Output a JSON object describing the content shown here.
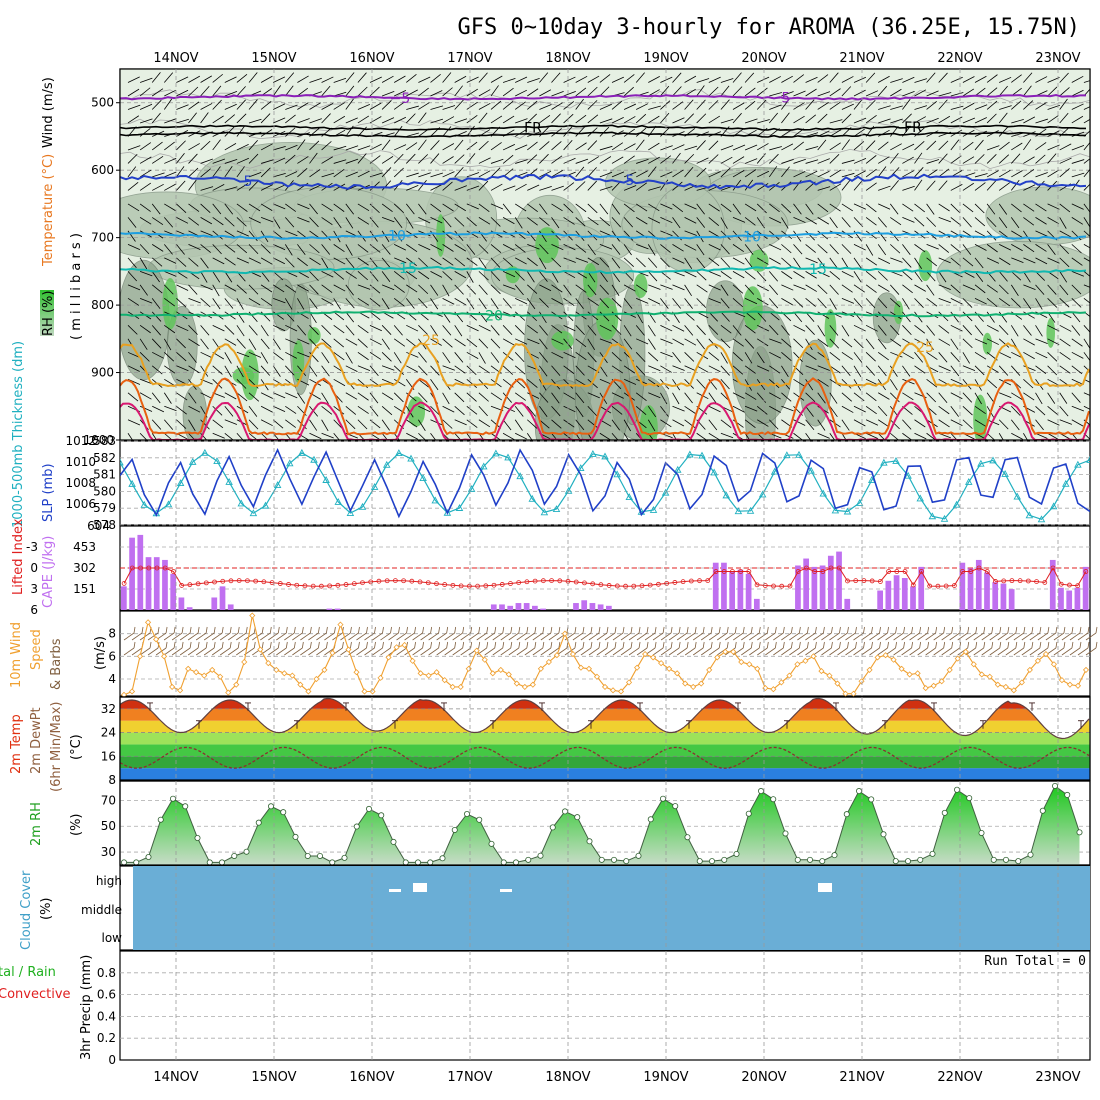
{
  "title": "GFS 0~10day 3-hourly for AROMA (36.25E, 15.75N)",
  "dates": [
    "14NOV",
    "15NOV",
    "16NOV",
    "17NOV",
    "18NOV",
    "19NOV",
    "20NOV",
    "21NOV",
    "22NOV",
    "23NOV"
  ],
  "panel_labels": {
    "upper_wind": "Wind (m/s)",
    "upper_temp": "Temperature (°C)",
    "upper_rh": "RH (%)",
    "upper_pressure": "( m i l l i b a r s )",
    "thickness": "1000-500mb Thickness (dm)",
    "slp": "SLP (mb)",
    "lifted": "Lifted Index",
    "cape": "CAPE (J/kg)",
    "wind10_a": "10m Wind",
    "wind10_b": "Speed",
    "wind10_c": "& Barbs",
    "wind10_unit": "(m/s)",
    "temp_a": "2m Temp",
    "temp_b": "2m DewPt",
    "temp_c": "(6hr Min/Max)",
    "temp_unit": "(°C)",
    "rh2m": "2m RH",
    "rh2m_unit": "(%)",
    "cloud": "Cloud Cover",
    "cloud_unit": "(%)",
    "precip_a": "tal / Rain",
    "precip_b": "Convective",
    "precip_c": "3hr Precip (mm)"
  },
  "run_total": "Run Total = 0",
  "colors": {
    "grid": "#aaaaaa",
    "rh_light": "#e6f0e3",
    "rh_mid": "#b3c6b0",
    "rh_dark": "#8aa088",
    "rh_green": "#5fc45a",
    "temp_m5": "#8a20b8",
    "temp_fr": "#000000",
    "temp_5": "#2340c8",
    "temp_10": "#1e9ee0",
    "temp_15": "#10b8b0",
    "temp_20": "#10b070",
    "temp_25": "#e8a020",
    "temp_30": "#e86010",
    "temp_35": "#d81870",
    "thickness": "#20b0c0",
    "slp": "#2040c8",
    "cape": "#c070f0",
    "lifted": "#e02020",
    "wind10": "#f0a030",
    "barb": "#806040",
    "rh2m": "#20c020",
    "cloud": "#6aaed6"
  },
  "chart_data": [
    {
      "id": "upper_air",
      "type": "contour",
      "ylabel": "millibars",
      "ylim": [
        1000,
        450
      ],
      "ytick_labels": [
        "500",
        "600",
        "700",
        "800",
        "900",
        "1000"
      ],
      "isotherms": [
        {
          "label": "-5",
          "mean_hPa": 492,
          "amp": 6
        },
        {
          "label": "FR",
          "mean_hPa": 537,
          "amp": 6
        },
        {
          "label": "5",
          "mean_hPa": 617,
          "amp": 18
        },
        {
          "label": "10",
          "mean_hPa": 697,
          "amp": 8
        },
        {
          "label": "15",
          "mean_hPa": 748,
          "amp": 8
        },
        {
          "label": "20",
          "mean_hPa": 813,
          "amp": 6
        },
        {
          "label": "25",
          "mean_hPa": 888,
          "amp": 60
        },
        {
          "label": "30",
          "mean_hPa": 952,
          "amp": 55
        },
        {
          "label": "35",
          "mean_hPa": 985,
          "amp": 30
        }
      ],
      "rh_levels_pct": [
        10,
        30,
        50,
        70
      ]
    },
    {
      "id": "thickness_slp",
      "type": "line",
      "series": [
        {
          "name": "1000-500mb Thickness (dm)",
          "axis": "left",
          "ylim": [
            578,
            583
          ],
          "ytick_labels": [
            "578",
            "579",
            "580",
            "581",
            "582",
            "583"
          ]
        },
        {
          "name": "SLP (mb)",
          "axis": "right",
          "ylim": [
            1004,
            1012
          ],
          "ytick_labels": [
            "1006",
            "1008",
            "1010",
            "1012"
          ]
        }
      ]
    },
    {
      "id": "cape_lifted",
      "type": "bar",
      "series": [
        {
          "name": "CAPE (J/kg)",
          "ylim": [
            0,
            604
          ],
          "ytick_labels": [
            "604",
            "453",
            "302",
            "151"
          ],
          "values": [
            170,
            520,
            540,
            380,
            380,
            360,
            260,
            90,
            20,
            0,
            0,
            90,
            170,
            40,
            0,
            0,
            0,
            0,
            0,
            0,
            0,
            0,
            0,
            0,
            0,
            10,
            10,
            0,
            0,
            0,
            0,
            0,
            0,
            0,
            0,
            0,
            0,
            0,
            0,
            0,
            0,
            0,
            0,
            0,
            0,
            40,
            40,
            30,
            50,
            50,
            30,
            10,
            0,
            0,
            0,
            50,
            70,
            50,
            40,
            30,
            0,
            0,
            0,
            0,
            0,
            0,
            0,
            0,
            0,
            0,
            0,
            0,
            340,
            340,
            280,
            290,
            260,
            80,
            0,
            0,
            0,
            0,
            320,
            370,
            310,
            320,
            390,
            420,
            80,
            0,
            0,
            0,
            140,
            210,
            250,
            230,
            170,
            310,
            0,
            0,
            0,
            0,
            340,
            300,
            360,
            270,
            200,
            190,
            150,
            0,
            0,
            0,
            0,
            360,
            160,
            140,
            160,
            310
          ]
        },
        {
          "name": "Lifted Index",
          "ylim": [
            6,
            -6
          ],
          "ytick_labels": [
            "-3",
            "0",
            "3",
            "6"
          ]
        }
      ]
    },
    {
      "id": "wind10",
      "type": "line",
      "ylabel": "m/s",
      "ylim": [
        2.5,
        10
      ],
      "ytick_labels": [
        "4",
        "6",
        "8"
      ],
      "values": [
        2.6,
        2.9,
        6.0,
        9.0,
        7.5,
        6.0,
        3.3,
        3.0,
        4.9,
        4.6,
        4.3,
        4.8,
        4.2,
        2.8,
        3.5,
        5.5,
        9.6,
        6.6,
        5.4,
        4.8,
        4.5,
        4.3,
        3.5,
        2.9,
        4.0,
        4.8,
        6.3,
        8.8,
        6.6,
        4.6,
        2.9,
        2.9,
        4.1,
        5.9,
        6.8,
        7.0,
        5.6,
        4.5,
        4.3,
        4.6,
        3.9,
        3.3,
        3.3,
        4.9,
        6.5,
        5.7,
        4.5,
        4.8,
        4.4,
        3.6,
        3.3,
        3.5,
        4.9,
        5.5,
        6.1,
        8.0,
        6.2,
        5.0,
        4.9,
        4.2,
        3.3,
        3.0,
        2.9,
        3.7,
        5.0,
        6.2,
        5.9,
        5.4,
        4.9,
        4.5,
        3.6,
        3.3,
        3.6,
        4.8,
        5.9,
        6.4,
        6.4,
        5.5,
        5.3,
        4.9,
        3.2,
        3.1,
        3.7,
        4.3,
        5.3,
        5.6,
        6.0,
        4.7,
        4.3,
        3.6,
        2.7,
        2.7,
        3.8,
        4.8,
        5.9,
        6.1,
        5.7,
        4.9,
        4.4,
        4.5,
        3.2,
        3.4,
        3.8,
        4.8,
        5.8,
        6.4,
        5.3,
        4.4,
        4.2,
        3.5,
        3.3,
        3.0,
        3.7,
        4.8,
        5.6,
        6.2,
        5.3,
        3.9,
        3.5,
        3.4,
        4.8
      ]
    },
    {
      "id": "temp2m",
      "type": "area",
      "ylabel": "°C",
      "ylim": [
        8,
        36
      ],
      "ytick_labels": [
        "32",
        "24",
        "16",
        "8"
      ],
      "tmax_C": [
        35,
        35,
        35.5,
        35,
        35,
        35,
        35,
        35.5,
        35,
        34
      ],
      "tmin_C": [
        24,
        24,
        24.5,
        24,
        24,
        24,
        24,
        23.5,
        23,
        22
      ],
      "dewpt_max_C": 19,
      "dewpt_min_C": 12
    },
    {
      "id": "rh2m",
      "type": "area",
      "ylabel": "%",
      "ylim": [
        20,
        85
      ],
      "ytick_labels": [
        "70",
        "50",
        "30"
      ],
      "daily_max_pct": [
        72,
        66,
        64,
        60,
        62,
        72,
        78,
        78,
        79,
        82
      ],
      "daily_min_pct": [
        22,
        27,
        22,
        22,
        24,
        23,
        24,
        23,
        24,
        23
      ]
    },
    {
      "id": "cloud",
      "type": "heatmap",
      "ytick_labels": [
        "high",
        "middle",
        "low"
      ],
      "cloud_pct": 100
    },
    {
      "id": "precip",
      "type": "bar",
      "ylabel": "mm",
      "ylim": [
        0,
        1
      ],
      "ytick_labels": [
        "0.8",
        "0.6",
        "0.4",
        "0.2",
        "0"
      ],
      "values": []
    }
  ]
}
